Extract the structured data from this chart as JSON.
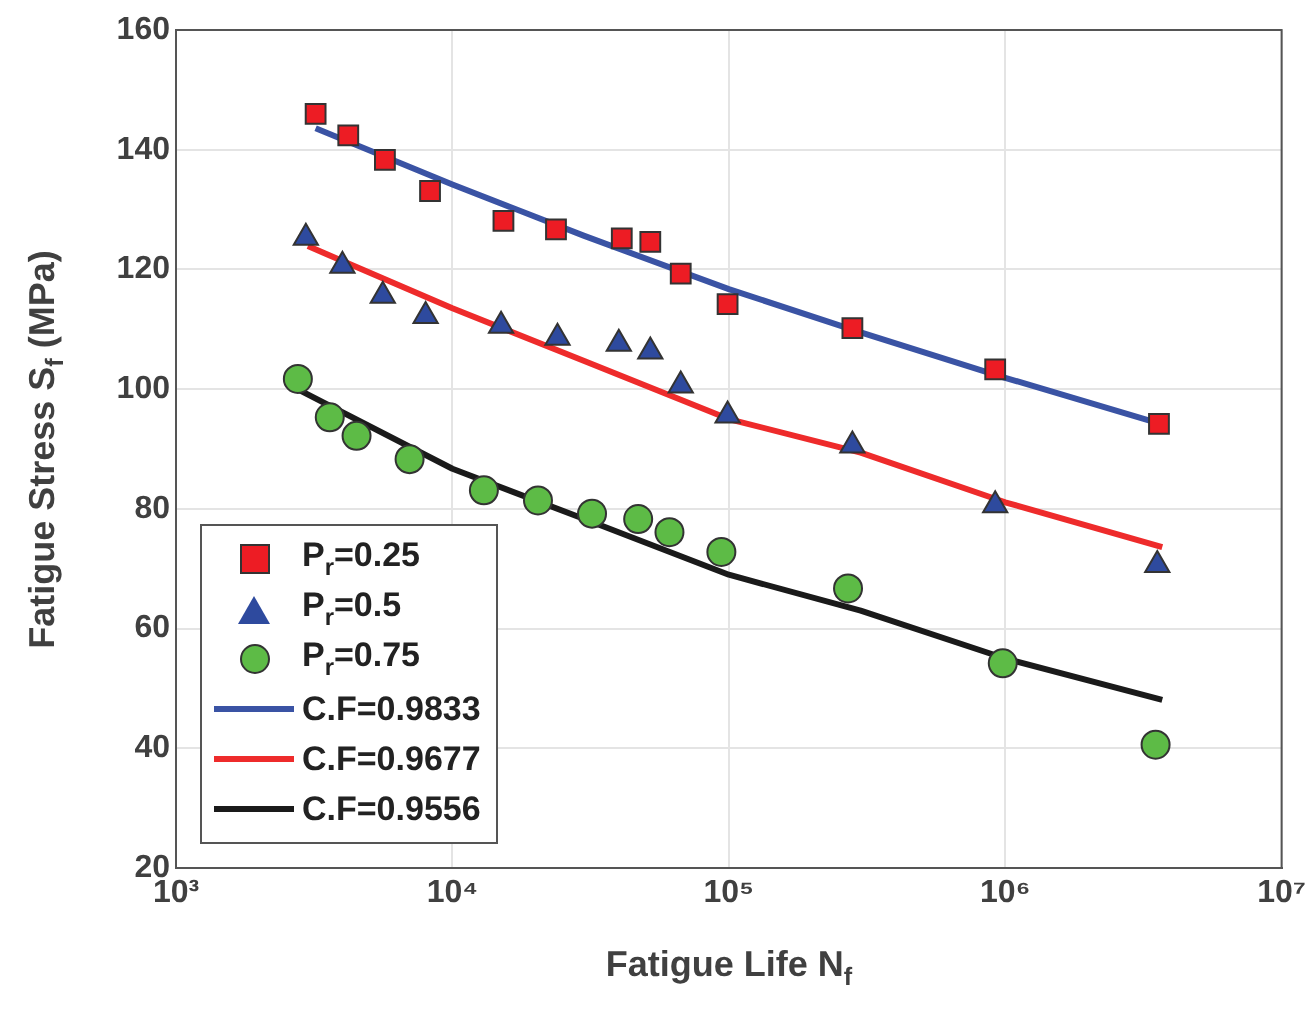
{
  "chart_data": {
    "type": "scatter",
    "xlabel": "Fatigue Life N$_{f}$",
    "ylabel": "Fatigue Stress S$_{f}$ (MPa)",
    "log": "x",
    "grid": true,
    "legend": "bottom left",
    "xlim": [
      1000,
      10000000
    ],
    "xticks": [
      {
        "value": 1000,
        "label": "10³"
      },
      {
        "value": 10000,
        "label": "10⁴"
      },
      {
        "value": 100000,
        "label": "10⁵"
      },
      {
        "value": 1000000,
        "label": "10⁶"
      },
      {
        "value": 10000000,
        "label": "10⁷"
      }
    ],
    "ylim": [
      20,
      160
    ],
    "yticks": [
      20,
      40,
      60,
      80,
      100,
      120,
      140,
      160
    ],
    "series": [
      {
        "name": "P$_{r}$=0.25",
        "marker": "square",
        "color": "#ed1c24",
        "x": [
          3200,
          4200,
          5700,
          8300,
          15300,
          23700,
          41000,
          52000,
          67000,
          99000,
          280000,
          920000,
          3600000
        ],
        "values": [
          146,
          142.4,
          138.3,
          133.1,
          128.1,
          126.7,
          125.2,
          124.6,
          119.3,
          114.2,
          110.2,
          103.3,
          94.2
        ]
      },
      {
        "name": "P$_{r}$=0.5",
        "marker": "triangle",
        "color": "#2e4a9e",
        "x": [
          2950,
          4000,
          5600,
          8000,
          15000,
          24000,
          40000,
          52000,
          67000,
          99000,
          280000,
          920000,
          3550000
        ],
        "values": [
          125.3,
          120.6,
          115.6,
          112.2,
          110.6,
          108.6,
          107.6,
          106.3,
          100.6,
          95.6,
          90.6,
          80.6,
          70.6
        ]
      },
      {
        "name": "P$_{r}$=0.75",
        "marker": "circle",
        "color": "#5dbb46",
        "x": [
          2760,
          3600,
          4500,
          7000,
          13000,
          20400,
          32000,
          47000,
          61000,
          94000,
          270000,
          980000,
          3500000
        ],
        "values": [
          101.7,
          95.3,
          92.2,
          88.3,
          83.1,
          81.4,
          79.2,
          78.3,
          76.1,
          72.8,
          66.7,
          54.2,
          40.6
        ]
      },
      {
        "name": "C.F=0.9833",
        "type": "line",
        "color": "#3a53a4",
        "x": [
          3200,
          10000,
          30000,
          100000,
          300000,
          1000000,
          3700000
        ],
        "values": [
          143.6,
          134.2,
          125.6,
          116.7,
          109.5,
          101.9,
          94.1
        ]
      },
      {
        "name": "C.F=0.9677",
        "type": "line",
        "color": "#ee2b2b",
        "x": [
          3000,
          10000,
          30000,
          100000,
          300000,
          1000000,
          3700000
        ],
        "values": [
          123.9,
          113.5,
          104.7,
          95,
          89.4,
          81.1,
          73.6
        ]
      },
      {
        "name": "C.F=0.9556",
        "type": "line",
        "color": "#1a1a1a",
        "x": [
          2750,
          10000,
          30000,
          100000,
          300000,
          1000000,
          3700000
        ],
        "values": [
          100,
          86.7,
          78.3,
          69,
          63,
          55,
          48.1
        ]
      }
    ]
  }
}
